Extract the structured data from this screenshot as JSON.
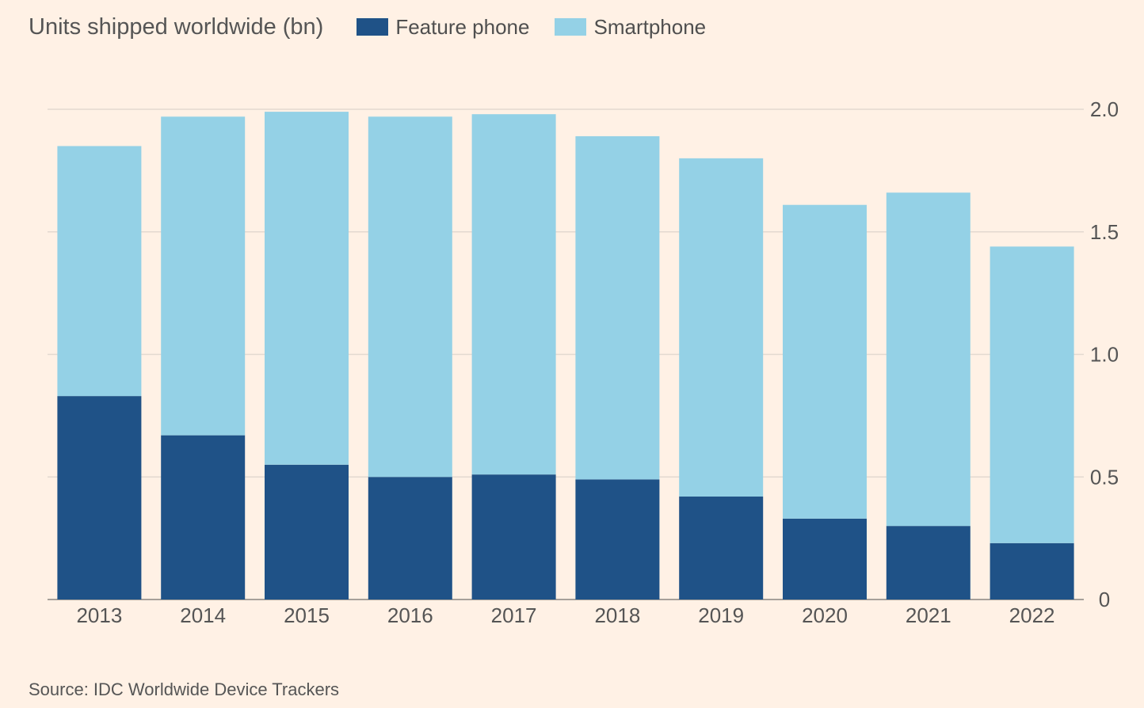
{
  "chart_data": {
    "type": "bar",
    "stacked": true,
    "title": "Units shipped worldwide (bn)",
    "categories": [
      "2013",
      "2014",
      "2015",
      "2016",
      "2017",
      "2018",
      "2019",
      "2020",
      "2021",
      "2022"
    ],
    "series": [
      {
        "name": "Feature phone",
        "color": "#1f5287",
        "values": [
          0.83,
          0.67,
          0.55,
          0.5,
          0.51,
          0.49,
          0.42,
          0.33,
          0.3,
          0.23
        ]
      },
      {
        "name": "Smartphone",
        "color": "#94d1e6",
        "values": [
          1.02,
          1.3,
          1.44,
          1.47,
          1.47,
          1.4,
          1.38,
          1.28,
          1.36,
          1.21
        ]
      }
    ],
    "ylim": [
      0,
      2.0
    ],
    "yticks": [
      "0",
      "0.5",
      "1.0",
      "1.5",
      "2.0"
    ],
    "ytick_values": [
      0,
      0.5,
      1.0,
      1.5,
      2.0
    ],
    "yaxis_side": "right",
    "grid": true,
    "legend_position": "top",
    "xlabel": "",
    "ylabel": ""
  },
  "source": "Source: IDC Worldwide Device Trackers",
  "colors": {
    "background": "#fff1e5",
    "grid": "#e3d9d0"
  }
}
